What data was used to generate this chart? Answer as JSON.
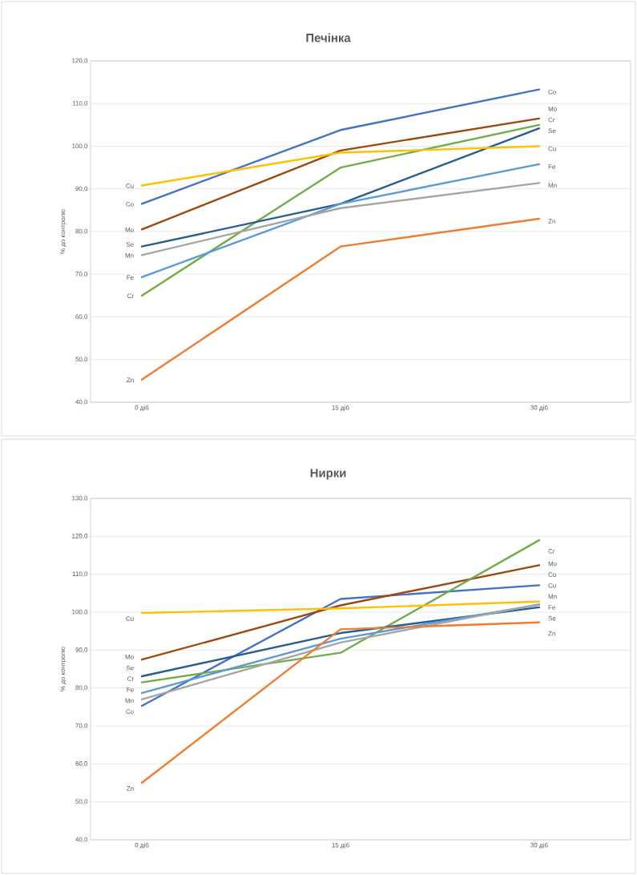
{
  "chart_data": [
    {
      "type": "line",
      "title": "Печінка",
      "ylabel": "% до контролю",
      "categories": [
        "0 діб",
        "15 діб",
        "30 діб"
      ],
      "ylim": [
        40,
        120
      ],
      "yticks": [
        {
          "value": 40,
          "label": "40,0"
        },
        {
          "value": 50,
          "label": "50,0"
        },
        {
          "value": 60,
          "label": "60,0"
        },
        {
          "value": 70,
          "label": "70,0"
        },
        {
          "value": 80,
          "label": "80,0"
        },
        {
          "value": 90,
          "label": "90,0"
        },
        {
          "value": 100,
          "label": "100,0"
        },
        {
          "value": 110,
          "label": "110,0"
        },
        {
          "value": 120,
          "label": "120,0"
        }
      ],
      "grid": "y",
      "line_style": "solid",
      "series": [
        {
          "name": "Co",
          "color": "#4472c4",
          "values": [
            86.5,
            103.8,
            113.3
          ]
        },
        {
          "name": "Mo",
          "color": "#9e480e",
          "values": [
            80.5,
            99.0,
            106.5
          ]
        },
        {
          "name": "Cr",
          "color": "#70ad47",
          "values": [
            65.0,
            95.0,
            105.0
          ]
        },
        {
          "name": "Se",
          "color": "#255e91",
          "values": [
            76.5,
            86.5,
            104.2
          ]
        },
        {
          "name": "Cu",
          "color": "#ffc000",
          "values": [
            90.8,
            98.5,
            100.0
          ]
        },
        {
          "name": "Fe",
          "color": "#5b9bd5",
          "values": [
            69.3,
            86.5,
            95.8
          ]
        },
        {
          "name": "Mn",
          "color": "#a5a5a5",
          "values": [
            74.5,
            85.5,
            91.4
          ]
        },
        {
          "name": "Zn",
          "color": "#ed7d31",
          "values": [
            45.3,
            76.5,
            83.0
          ]
        }
      ]
    },
    {
      "type": "line",
      "title": "Нирки",
      "ylabel": "% до контролю",
      "categories": [
        "0 діб",
        "15 діб",
        "30 діб"
      ],
      "ylim": [
        40,
        130
      ],
      "yticks": [
        {
          "value": 40,
          "label": "40,0"
        },
        {
          "value": 50,
          "label": "50,0"
        },
        {
          "value": 60,
          "label": "60,0"
        },
        {
          "value": 70,
          "label": "70,0"
        },
        {
          "value": 80,
          "label": "80,0"
        },
        {
          "value": 90,
          "label": "90,0"
        },
        {
          "value": 100,
          "label": "100,0"
        },
        {
          "value": 110,
          "label": "110,0"
        },
        {
          "value": 120,
          "label": "120,0"
        },
        {
          "value": 130,
          "label": "130,0"
        }
      ],
      "grid": "y",
      "line_style": "solid",
      "series": [
        {
          "name": "Co",
          "color": "#4472c4",
          "values": [
            75.3,
            103.5,
            107.1
          ]
        },
        {
          "name": "Mo",
          "color": "#9e480e",
          "values": [
            87.5,
            101.8,
            112.4
          ]
        },
        {
          "name": "Cr",
          "color": "#70ad47",
          "values": [
            81.5,
            89.3,
            119.0
          ]
        },
        {
          "name": "Se",
          "color": "#255e91",
          "values": [
            83.1,
            94.5,
            101.3
          ]
        },
        {
          "name": "Cu",
          "color": "#ffc000",
          "values": [
            99.8,
            101.0,
            102.8
          ]
        },
        {
          "name": "Fe",
          "color": "#5b9bd5",
          "values": [
            78.7,
            93.0,
            102.0
          ]
        },
        {
          "name": "Mn",
          "color": "#a5a5a5",
          "values": [
            77.0,
            92.0,
            102.1
          ]
        },
        {
          "name": "Zn",
          "color": "#ed7d31",
          "values": [
            55.0,
            95.5,
            97.3
          ]
        }
      ]
    }
  ]
}
